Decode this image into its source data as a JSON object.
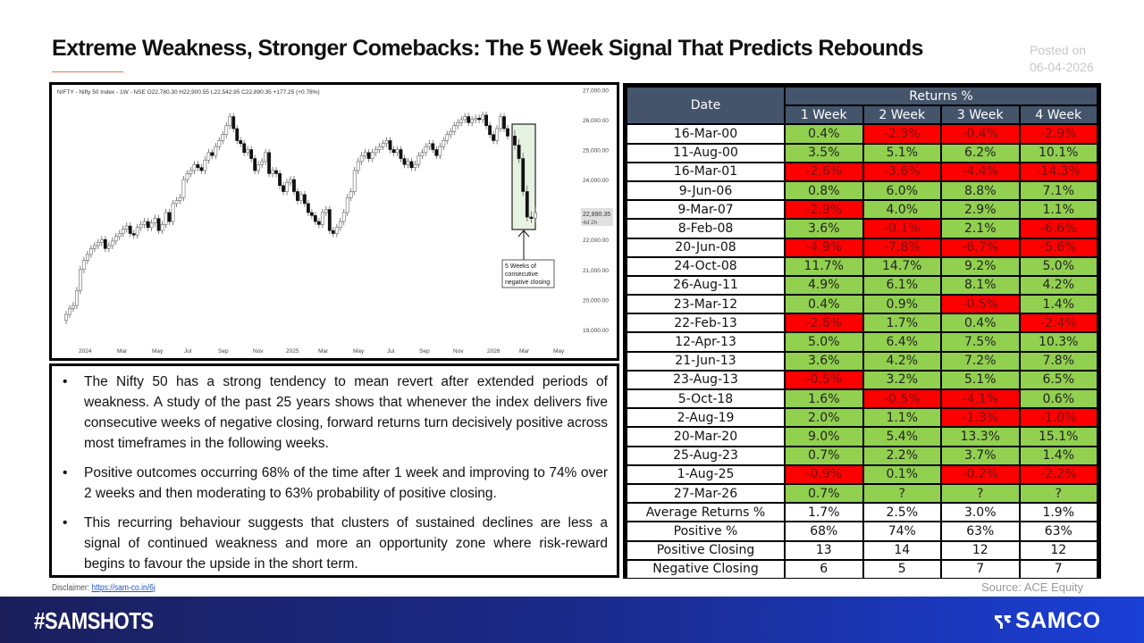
{
  "header": {
    "title": "Extreme Weakness, Stronger Comebacks: The 5 Week Signal That Predicts Rebounds",
    "posted_label": "Posted on",
    "posted_date": "06-04-2026"
  },
  "chart_data": [
    {
      "type": "candlestick",
      "title": "NIFTY - Nifty 50 Index - 1W - NSE",
      "ohlc_label": "O22,780.30 H22,900.55 L22,542.95 C22,890.35 +177.25 (+0.78%)",
      "open": 22780.3,
      "high": 22900.55,
      "low": 22542.95,
      "close": 22890.35,
      "change": 177.25,
      "change_pct": 0.78,
      "y_ticks": [
        27000,
        26000,
        25000,
        24000,
        23000,
        22000,
        21000,
        20000,
        19000
      ],
      "y_tick_labels": [
        "27,000.00",
        "26,000.00",
        "25,000.00",
        "24,000.00",
        "22,000.00",
        "21,000.00",
        "20,000.00",
        "19,000.00"
      ],
      "ylim": [
        18700,
        27100
      ],
      "x_tick_labels": [
        "2024",
        "Mar",
        "May",
        "Jul",
        "Sep",
        "Nov",
        "2025",
        "Mar",
        "May",
        "Jul",
        "Sep",
        "Nov",
        "2026",
        "Mar",
        "May"
      ],
      "last_price_label": "22,890.35",
      "countdown_label": "4d 2h",
      "annotation": "5 Weeks of consecutive negative closing",
      "grid": false
    },
    {
      "type": "table",
      "title": "Returns %",
      "columns": [
        "Date",
        "1 Week",
        "2 Week",
        "3 Week",
        "4 Week"
      ],
      "rows": [
        [
          "16-Mar-00",
          0.4,
          -2.3,
          -0.4,
          -2.9
        ],
        [
          "11-Aug-00",
          3.5,
          5.1,
          6.2,
          10.1
        ],
        [
          "16-Mar-01",
          -2.6,
          -3.6,
          -4.4,
          -14.3
        ],
        [
          "9-Jun-06",
          0.8,
          6.0,
          8.8,
          7.1
        ],
        [
          "9-Mar-07",
          -2.9,
          4.0,
          2.9,
          1.1
        ],
        [
          "8-Feb-08",
          3.6,
          -0.1,
          2.1,
          -6.6
        ],
        [
          "20-Jun-08",
          -4.9,
          -7.8,
          -6.7,
          -5.6
        ],
        [
          "24-Oct-08",
          11.7,
          14.7,
          9.2,
          5.0
        ],
        [
          "26-Aug-11",
          4.9,
          6.1,
          8.1,
          4.2
        ],
        [
          "23-Mar-12",
          0.4,
          0.9,
          -0.5,
          1.4
        ],
        [
          "22-Feb-13",
          -2.6,
          1.7,
          0.4,
          -2.4
        ],
        [
          "12-Apr-13",
          5.0,
          6.4,
          7.5,
          10.3
        ],
        [
          "21-Jun-13",
          3.6,
          4.2,
          7.2,
          7.8
        ],
        [
          "23-Aug-13",
          -0.5,
          3.2,
          5.1,
          6.5
        ],
        [
          "5-Oct-18",
          1.6,
          -0.5,
          -4.1,
          0.6
        ],
        [
          "2-Aug-19",
          2.0,
          1.1,
          -1.3,
          -1.0
        ],
        [
          "20-Mar-20",
          9.0,
          5.4,
          13.3,
          15.1
        ],
        [
          "25-Aug-23",
          0.7,
          2.2,
          3.7,
          1.4
        ],
        [
          "1-Aug-25",
          -0.9,
          0.1,
          -0.2,
          -2.2
        ],
        [
          "27-Mar-26",
          0.7,
          null,
          null,
          null
        ]
      ],
      "summary": {
        "average_returns_pct": [
          1.7,
          2.5,
          3.0,
          1.9
        ],
        "positive_pct": [
          68,
          74,
          63,
          63
        ],
        "positive_closing": [
          13,
          14,
          12,
          12
        ],
        "negative_closing": [
          6,
          5,
          7,
          7
        ]
      }
    }
  ],
  "chart": {
    "legend": "NIFTY - Nifty 50 Index - 1W - NSE  O22,780.30  H22,900.55  L22,542.95  C22,890.35  +177.25 (+0.78%)",
    "y_labels": [
      "27,000.00",
      "26,000.00",
      "25,000.00",
      "24,000.00",
      "22,000.00",
      "21,000.00",
      "20,000.00",
      "19,000.00"
    ],
    "x_labels": [
      "2024",
      "Mar",
      "May",
      "Jul",
      "Sep",
      "Nov",
      "2025",
      "Mar",
      "May",
      "Jul",
      "Sep",
      "Nov",
      "2026",
      "Mar",
      "May"
    ],
    "price_tag": "22,890.35",
    "countdown": "4d 2h",
    "annotation_lines": [
      "5 Weeks of",
      "consecutive",
      "negative closing"
    ],
    "highlight_color": "#dcefd6"
  },
  "notes": [
    "The Nifty 50 has a strong tendency to mean revert after extended periods of weakness. A study of the past 25 years shows that whenever the index delivers five consecutive weeks of negative closing, forward returns turn decisively positive across most timeframes in the following weeks.",
    "Positive outcomes occurring 68% of the time after 1 week and improving to 74% over 2 weeks and then moderating to 63% probability of positive closing.",
    "This recurring behaviour suggests that clusters of sustained declines are less a signal of continued weakness and more an opportunity zone where risk-reward begins to favour the upside in the short term."
  ],
  "bullet": "•",
  "table": {
    "date_header": "Date",
    "group_header": "Returns %",
    "week_headers": [
      "1 Week",
      "2 Week",
      "3 Week",
      "4 Week"
    ],
    "rows": [
      {
        "date": "16-Mar-00",
        "v": [
          "0.4%",
          "-2.3%",
          "-0.4%",
          "-2.9%"
        ]
      },
      {
        "date": "11-Aug-00",
        "v": [
          "3.5%",
          "5.1%",
          "6.2%",
          "10.1%"
        ]
      },
      {
        "date": "16-Mar-01",
        "v": [
          "-2.6%",
          "-3.6%",
          "-4.4%",
          "-14.3%"
        ]
      },
      {
        "date": "9-Jun-06",
        "v": [
          "0.8%",
          "6.0%",
          "8.8%",
          "7.1%"
        ]
      },
      {
        "date": "9-Mar-07",
        "v": [
          "-2.9%",
          "4.0%",
          "2.9%",
          "1.1%"
        ]
      },
      {
        "date": "8-Feb-08",
        "v": [
          "3.6%",
          "-0.1%",
          "2.1%",
          "-6.6%"
        ]
      },
      {
        "date": "20-Jun-08",
        "v": [
          "-4.9%",
          "-7.8%",
          "-6.7%",
          "-5.6%"
        ]
      },
      {
        "date": "24-Oct-08",
        "v": [
          "11.7%",
          "14.7%",
          "9.2%",
          "5.0%"
        ]
      },
      {
        "date": "26-Aug-11",
        "v": [
          "4.9%",
          "6.1%",
          "8.1%",
          "4.2%"
        ]
      },
      {
        "date": "23-Mar-12",
        "v": [
          "0.4%",
          "0.9%",
          "-0.5%",
          "1.4%"
        ]
      },
      {
        "date": "22-Feb-13",
        "v": [
          "-2.6%",
          "1.7%",
          "0.4%",
          "-2.4%"
        ]
      },
      {
        "date": "12-Apr-13",
        "v": [
          "5.0%",
          "6.4%",
          "7.5%",
          "10.3%"
        ]
      },
      {
        "date": "21-Jun-13",
        "v": [
          "3.6%",
          "4.2%",
          "7.2%",
          "7.8%"
        ]
      },
      {
        "date": "23-Aug-13",
        "v": [
          "-0.5%",
          "3.2%",
          "5.1%",
          "6.5%"
        ]
      },
      {
        "date": "5-Oct-18",
        "v": [
          "1.6%",
          "-0.5%",
          "-4.1%",
          "0.6%"
        ]
      },
      {
        "date": "2-Aug-19",
        "v": [
          "2.0%",
          "1.1%",
          "-1.3%",
          "-1.0%"
        ]
      },
      {
        "date": "20-Mar-20",
        "v": [
          "9.0%",
          "5.4%",
          "13.3%",
          "15.1%"
        ]
      },
      {
        "date": "25-Aug-23",
        "v": [
          "0.7%",
          "2.2%",
          "3.7%",
          "1.4%"
        ]
      },
      {
        "date": "1-Aug-25",
        "v": [
          "-0.9%",
          "0.1%",
          "-0.2%",
          "-2.2%"
        ]
      },
      {
        "date": "27-Mar-26",
        "v": [
          "0.7%",
          "?",
          "?",
          "?"
        ]
      }
    ],
    "summary_rows": [
      {
        "label": "Average Returns %",
        "v": [
          "1.7%",
          "2.5%",
          "3.0%",
          "1.9%"
        ]
      },
      {
        "label": "Positive %",
        "v": [
          "68%",
          "74%",
          "63%",
          "63%"
        ]
      },
      {
        "label": "Positive Closing",
        "v": [
          "13",
          "14",
          "12",
          "12"
        ]
      },
      {
        "label": "Negative Closing",
        "v": [
          "6",
          "5",
          "7",
          "7"
        ]
      }
    ],
    "colors": {
      "positive": "#92d050",
      "negative": "#ff0000",
      "header": "#44546a"
    }
  },
  "footer": {
    "disclaimer_label": "Disclaimer:",
    "disclaimer_link": "https://sam-co.in/6j",
    "source": "Source: ACE Equity",
    "hashtag": "#SAMSHOTS",
    "brand": "SAMCO"
  }
}
